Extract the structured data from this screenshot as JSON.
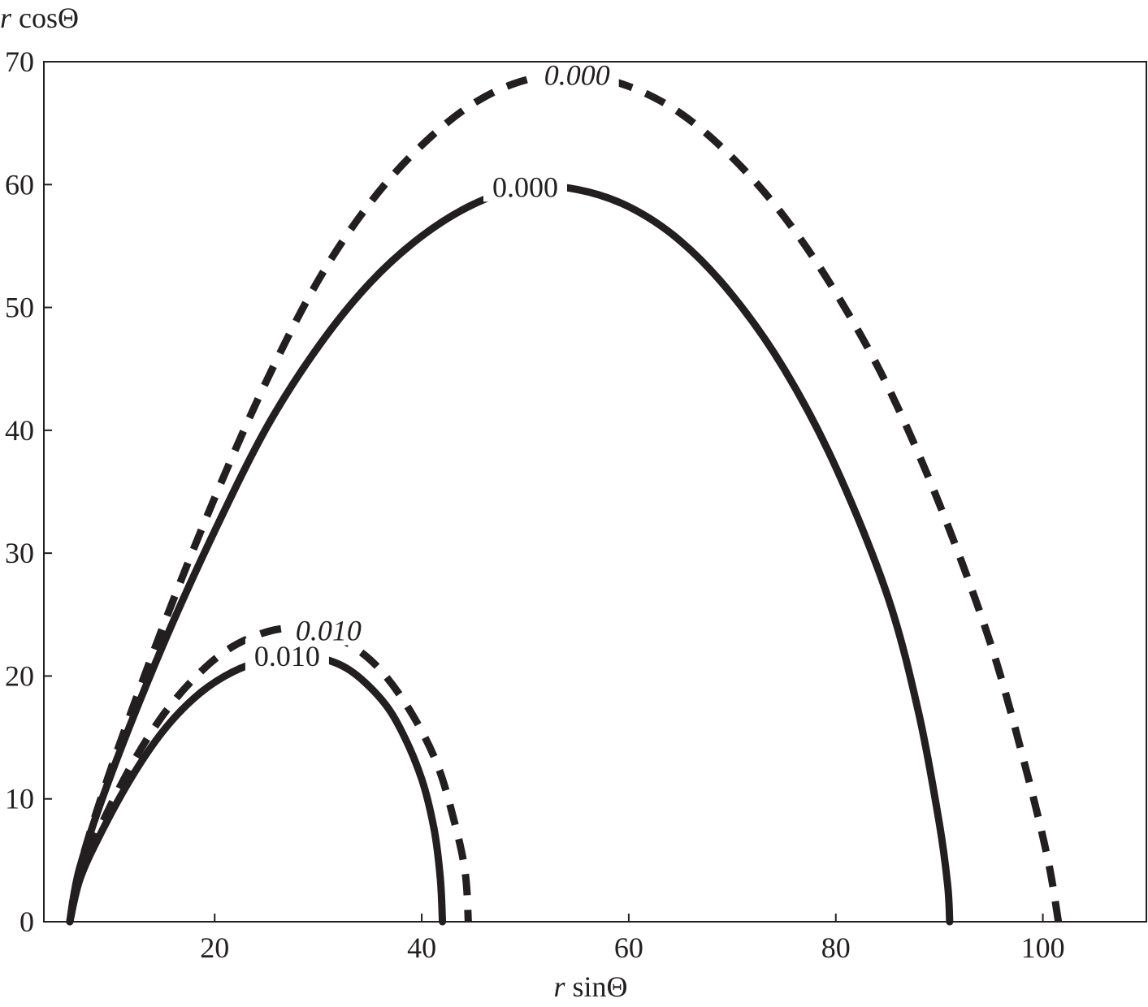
{
  "chart_data": {
    "type": "line",
    "title": "",
    "xlabel": {
      "var": "r",
      "func": " sinΘ"
    },
    "ylabel": {
      "var": "r",
      "func": " cosΘ"
    },
    "xlim": [
      3.5,
      110
    ],
    "ylim": [
      0,
      70
    ],
    "xticks": [
      20,
      40,
      60,
      80,
      100
    ],
    "yticks": [
      0,
      10,
      20,
      30,
      40,
      50,
      60,
      70
    ],
    "grid": false,
    "series": [
      {
        "style": "solid",
        "label": "0.000",
        "points": [
          [
            6,
            0
          ],
          [
            7,
            4.5
          ],
          [
            10,
            12
          ],
          [
            15,
            22.5
          ],
          [
            20,
            31.8
          ],
          [
            25,
            40.2
          ],
          [
            30,
            46.8
          ],
          [
            35,
            52
          ],
          [
            40,
            55.8
          ],
          [
            45,
            58.4
          ],
          [
            50,
            59.8
          ],
          [
            55,
            59.6
          ],
          [
            60,
            58.2
          ],
          [
            65,
            55.4
          ],
          [
            70,
            51
          ],
          [
            75,
            45
          ],
          [
            80,
            37
          ],
          [
            85,
            26.5
          ],
          [
            88,
            17
          ],
          [
            90,
            8
          ],
          [
            90.8,
            3
          ],
          [
            91,
            0
          ]
        ],
        "label_at": [
          50,
          59.8
        ]
      },
      {
        "style": "dashed",
        "label": "0.000",
        "points": [
          [
            6,
            0
          ],
          [
            7,
            4.5
          ],
          [
            10,
            12.5
          ],
          [
            15,
            24
          ],
          [
            20,
            34.5
          ],
          [
            25,
            44
          ],
          [
            30,
            52.2
          ],
          [
            35,
            58.5
          ],
          [
            40,
            63.2
          ],
          [
            45,
            66.6
          ],
          [
            50,
            68.5
          ],
          [
            55,
            68.9
          ],
          [
            60,
            68
          ],
          [
            65,
            65.8
          ],
          [
            70,
            62.2
          ],
          [
            75,
            57.4
          ],
          [
            80,
            51.2
          ],
          [
            85,
            43.6
          ],
          [
            90,
            34
          ],
          [
            95,
            22.5
          ],
          [
            98.5,
            12
          ],
          [
            100.5,
            5
          ],
          [
            101.5,
            0
          ]
        ],
        "label_at": [
          55,
          68.9
        ]
      },
      {
        "style": "solid",
        "label": "0.010",
        "points": [
          [
            6,
            0
          ],
          [
            7,
            3.5
          ],
          [
            9,
            7.2
          ],
          [
            12,
            11.8
          ],
          [
            15,
            15.5
          ],
          [
            18,
            18.2
          ],
          [
            21,
            20
          ],
          [
            24,
            21.1
          ],
          [
            27,
            21.6
          ],
          [
            30,
            21.5
          ],
          [
            33,
            20.5
          ],
          [
            36,
            18.2
          ],
          [
            38,
            15.6
          ],
          [
            40,
            11.6
          ],
          [
            41.2,
            7.5
          ],
          [
            41.8,
            3.5
          ],
          [
            42,
            0
          ]
        ],
        "label_at": [
          27,
          21.6
        ]
      },
      {
        "style": "dashed",
        "label": "0.010",
        "points": [
          [
            6,
            0
          ],
          [
            7,
            3.8
          ],
          [
            9,
            7.8
          ],
          [
            12,
            12.8
          ],
          [
            15,
            16.8
          ],
          [
            18,
            19.8
          ],
          [
            21,
            22
          ],
          [
            24,
            23.3
          ],
          [
            27,
            23.9
          ],
          [
            30,
            23.7
          ],
          [
            33,
            22.6
          ],
          [
            36,
            20.5
          ],
          [
            39,
            17
          ],
          [
            41.5,
            12.8
          ],
          [
            43.2,
            8
          ],
          [
            44.2,
            4
          ],
          [
            44.5,
            0
          ]
        ],
        "label_at": [
          31,
          23.7
        ]
      }
    ]
  }
}
